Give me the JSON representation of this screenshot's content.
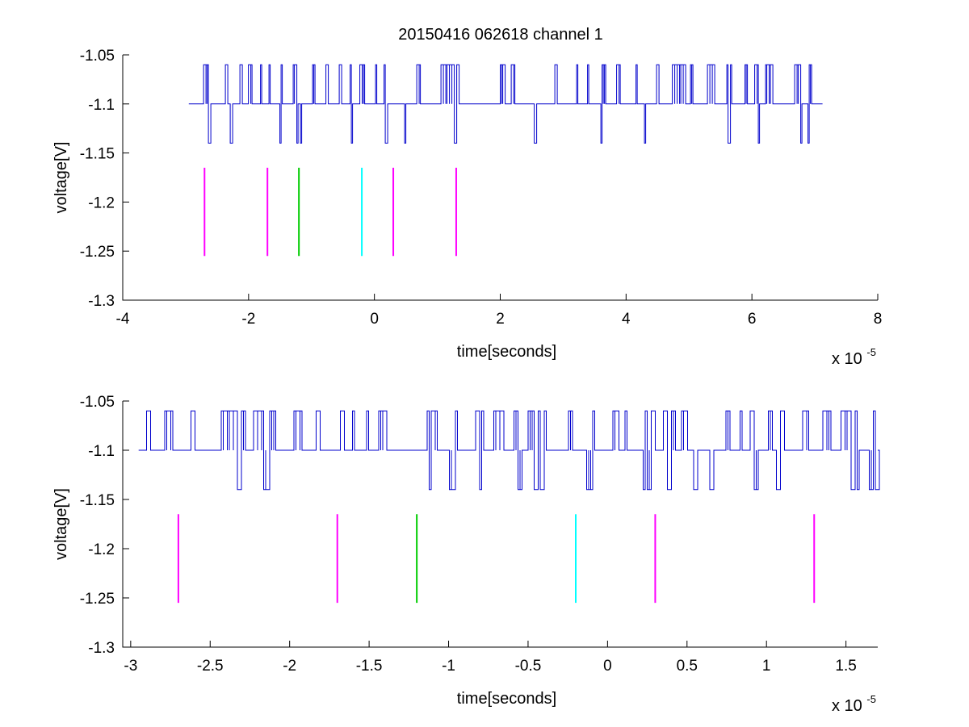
{
  "title": "20150416 062618 channel 1",
  "colors": {
    "trace": "#0000cc",
    "magenta": "#ff00ff",
    "green": "#00cc00",
    "cyan": "#00ffff"
  },
  "chart_data": [
    {
      "type": "line",
      "xlabel": "time[seconds]",
      "ylabel": "voltage[V]",
      "x_exponent_base": "x 10",
      "x_exponent_power": "-5",
      "xlim": [
        -4e-05,
        8e-05
      ],
      "ylim": [
        -1.3,
        -1.05
      ],
      "xtick_values": [
        -4e-05,
        -2e-05,
        0,
        2e-05,
        4e-05,
        6e-05,
        8e-05
      ],
      "xtick_labels": [
        "-4",
        "-2",
        "0",
        "2",
        "4",
        "6",
        "8"
      ],
      "ytick_values": [
        -1.3,
        -1.25,
        -1.2,
        -1.15,
        -1.1,
        -1.05
      ],
      "ytick_labels": [
        "-1.3",
        "-1.25",
        "-1.2",
        "-1.15",
        "-1.1",
        "-1.05"
      ],
      "trace": {
        "x_start": -2.95e-05,
        "x_end": 7e-05,
        "baseline": -1.1,
        "high": -1.06,
        "low": -1.14,
        "dense_start": -2.85e-05
      },
      "markers": [
        {
          "x": -2.7e-05,
          "y0": -1.255,
          "y1": -1.165,
          "color": "magenta"
        },
        {
          "x": -1.7e-05,
          "y0": -1.255,
          "y1": -1.165,
          "color": "magenta"
        },
        {
          "x": -1.2e-05,
          "y0": -1.255,
          "y1": -1.165,
          "color": "green"
        },
        {
          "x": -2e-06,
          "y0": -1.255,
          "y1": -1.165,
          "color": "cyan"
        },
        {
          "x": 3e-06,
          "y0": -1.255,
          "y1": -1.165,
          "color": "magenta"
        },
        {
          "x": 1.3e-05,
          "y0": -1.255,
          "y1": -1.165,
          "color": "magenta"
        }
      ]
    },
    {
      "type": "line",
      "xlabel": "time[seconds]",
      "ylabel": "voltage[V]",
      "x_exponent_base": "x 10",
      "x_exponent_power": "-5",
      "xlim": [
        -3.05e-05,
        1.7e-05
      ],
      "ylim": [
        -1.3,
        -1.05
      ],
      "xtick_values": [
        -3e-05,
        -2.5e-05,
        -2e-05,
        -1.5e-05,
        -1e-05,
        -5e-06,
        0,
        5e-06,
        1e-05,
        1.5e-05
      ],
      "xtick_labels": [
        "-3",
        "-2.5",
        "-2",
        "-1.5",
        "-1",
        "-0.5",
        "0",
        "0.5",
        "1",
        "1.5"
      ],
      "ytick_values": [
        -1.3,
        -1.25,
        -1.2,
        -1.15,
        -1.1,
        -1.05
      ],
      "ytick_labels": [
        "-1.3",
        "-1.25",
        "-1.2",
        "-1.15",
        "-1.1",
        "-1.05"
      ],
      "trace": {
        "x_start": -2.95e-05,
        "x_end": 1.7e-05,
        "baseline": -1.1,
        "high": -1.06,
        "low": -1.14,
        "dense_start": -2.9e-05
      },
      "markers": [
        {
          "x": -2.7e-05,
          "y0": -1.255,
          "y1": -1.165,
          "color": "magenta"
        },
        {
          "x": -1.7e-05,
          "y0": -1.255,
          "y1": -1.165,
          "color": "magenta"
        },
        {
          "x": -1.2e-05,
          "y0": -1.255,
          "y1": -1.165,
          "color": "green"
        },
        {
          "x": -2e-06,
          "y0": -1.255,
          "y1": -1.165,
          "color": "cyan"
        },
        {
          "x": 3e-06,
          "y0": -1.255,
          "y1": -1.165,
          "color": "magenta"
        },
        {
          "x": 1.3e-05,
          "y0": -1.255,
          "y1": -1.165,
          "color": "magenta"
        }
      ]
    }
  ]
}
